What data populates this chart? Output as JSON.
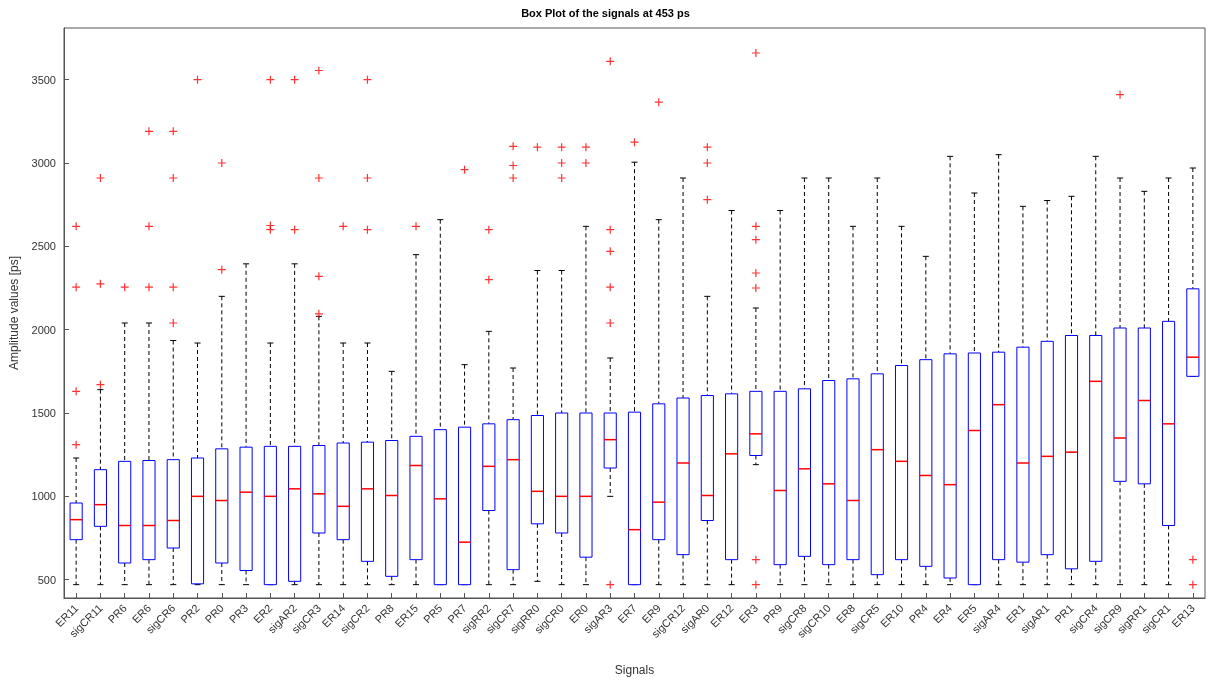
{
  "chart_data": {
    "type": "box",
    "title": "Box Plot of the signals at 453 ps",
    "xlabel": "Signals",
    "ylabel": "Amplitude values [ps]",
    "categories": [
      "ER11",
      "sigCR11",
      "PR6",
      "ER6",
      "sigCR6",
      "PR2",
      "PR0",
      "PR3",
      "ER2",
      "sigAR2",
      "sigCR3",
      "ER14",
      "sigCR2",
      "PR8",
      "ER15",
      "PR5",
      "PR7",
      "sigRR2",
      "sigCR7",
      "sigRR0",
      "sigCR0",
      "ER0",
      "sigAR3",
      "ER7",
      "ER9",
      "sigCR12",
      "sigAR0",
      "ER12",
      "ER3",
      "PR9",
      "sigCR8",
      "sigCR10",
      "ER8",
      "sigCR5",
      "ER10",
      "PR4",
      "ER4",
      "ER5",
      "sigAR4",
      "ER1",
      "sigAR1",
      "PR1",
      "sigCR4",
      "sigCR9",
      "sigRR1",
      "sigCR1",
      "ER13"
    ],
    "ylim": [
      390,
      3810
    ],
    "yticks": [
      500,
      1000,
      1500,
      2000,
      2500,
      3000,
      3500
    ],
    "grid": false,
    "marker": "cross",
    "series": [
      {
        "color": "#0000ff",
        "boxes": [
          {
            "low": 470,
            "q1": 740,
            "median": 860,
            "q3": 960,
            "high": 1230,
            "outliers": [
              1310,
              1630,
              2255,
              2620
            ]
          },
          {
            "low": 470,
            "q1": 820,
            "median": 950,
            "q3": 1160,
            "high": 1640,
            "outliers": [
              1670,
              2275,
              2910
            ]
          },
          {
            "low": 470,
            "q1": 600,
            "median": 825,
            "q3": 1210,
            "high": 2040,
            "outliers": [
              2255
            ]
          },
          {
            "low": 470,
            "q1": 620,
            "median": 825,
            "q3": 1215,
            "high": 2040,
            "outliers": [
              2255,
              2620,
              3190
            ]
          },
          {
            "low": 470,
            "q1": 690,
            "median": 855,
            "q3": 1220,
            "high": 1935,
            "outliers": [
              2040,
              2255,
              2910,
              3190
            ]
          },
          {
            "low": 470,
            "q1": 475,
            "median": 1000,
            "q3": 1230,
            "high": 1920,
            "outliers": [
              3500
            ]
          },
          {
            "low": 470,
            "q1": 600,
            "median": 975,
            "q3": 1285,
            "high": 2200,
            "outliers": [
              2360,
              3000
            ]
          },
          {
            "low": 470,
            "q1": 555,
            "median": 1025,
            "q3": 1295,
            "high": 2395
          },
          {
            "low": 470,
            "q1": 470,
            "median": 1000,
            "q3": 1300,
            "high": 1920,
            "outliers": [
              2600,
              2625,
              3500
            ]
          },
          {
            "low": 470,
            "q1": 490,
            "median": 1045,
            "q3": 1300,
            "high": 2395,
            "outliers": [
              2600,
              3500
            ]
          },
          {
            "low": 470,
            "q1": 780,
            "median": 1015,
            "q3": 1305,
            "high": 2080,
            "outliers": [
              2095,
              2320,
              2910,
              3555
            ]
          },
          {
            "low": 470,
            "q1": 740,
            "median": 940,
            "q3": 1320,
            "high": 1920,
            "outliers": [
              2620
            ]
          },
          {
            "low": 470,
            "q1": 610,
            "median": 1045,
            "q3": 1325,
            "high": 1920,
            "outliers": [
              2600,
              2910,
              3500
            ]
          },
          {
            "low": 470,
            "q1": 520,
            "median": 1005,
            "q3": 1335,
            "high": 1750
          },
          {
            "low": 470,
            "q1": 620,
            "median": 1185,
            "q3": 1360,
            "high": 2450,
            "outliers": [
              2620
            ]
          },
          {
            "low": 470,
            "q1": 470,
            "median": 985,
            "q3": 1400,
            "high": 2660
          },
          {
            "low": 470,
            "q1": 470,
            "median": 725,
            "q3": 1415,
            "high": 1790,
            "outliers": [
              2960
            ]
          },
          {
            "low": 470,
            "q1": 915,
            "median": 1180,
            "q3": 1435,
            "high": 1990,
            "outliers": [
              2300,
              2600
            ]
          },
          {
            "low": 470,
            "q1": 560,
            "median": 1220,
            "q3": 1460,
            "high": 1770,
            "outliers": [
              2910,
              2985,
              3100
            ]
          },
          {
            "low": 490,
            "q1": 835,
            "median": 1030,
            "q3": 1485,
            "high": 2355,
            "outliers": [
              3095
            ]
          },
          {
            "low": 470,
            "q1": 780,
            "median": 1000,
            "q3": 1500,
            "high": 2355,
            "outliers": [
              2910,
              3000,
              3095
            ]
          },
          {
            "low": 470,
            "q1": 635,
            "median": 1000,
            "q3": 1500,
            "high": 2620,
            "outliers": [
              3000,
              3095
            ]
          },
          {
            "low": 1000,
            "q1": 1170,
            "median": 1340,
            "q3": 1500,
            "high": 1830,
            "outliers": [
              470,
              2040,
              2255,
              2470,
              2600,
              3610
            ]
          },
          {
            "low": 470,
            "q1": 470,
            "median": 800,
            "q3": 1505,
            "high": 3005,
            "outliers": [
              3125
            ]
          },
          {
            "low": 470,
            "q1": 740,
            "median": 965,
            "q3": 1555,
            "high": 2660,
            "outliers": [
              3365
            ]
          },
          {
            "low": 470,
            "q1": 650,
            "median": 1200,
            "q3": 1590,
            "high": 2910
          },
          {
            "low": 470,
            "q1": 855,
            "median": 1005,
            "q3": 1605,
            "high": 2200,
            "outliers": [
              2780,
              3000,
              3095
            ]
          },
          {
            "low": 470,
            "q1": 620,
            "median": 1255,
            "q3": 1615,
            "high": 2715
          },
          {
            "low": 1190,
            "q1": 1245,
            "median": 1375,
            "q3": 1630,
            "high": 2130,
            "outliers": [
              470,
              620,
              2250,
              2340,
              2540,
              2620,
              3660
            ]
          },
          {
            "low": 470,
            "q1": 590,
            "median": 1035,
            "q3": 1630,
            "high": 2715
          },
          {
            "low": 470,
            "q1": 640,
            "median": 1165,
            "q3": 1645,
            "high": 2910
          },
          {
            "low": 470,
            "q1": 590,
            "median": 1075,
            "q3": 1695,
            "high": 2910
          },
          {
            "low": 470,
            "q1": 620,
            "median": 975,
            "q3": 1705,
            "high": 2620
          },
          {
            "low": 470,
            "q1": 530,
            "median": 1280,
            "q3": 1735,
            "high": 2910
          },
          {
            "low": 470,
            "q1": 620,
            "median": 1210,
            "q3": 1785,
            "high": 2620
          },
          {
            "low": 470,
            "q1": 580,
            "median": 1125,
            "q3": 1820,
            "high": 2440
          },
          {
            "low": 470,
            "q1": 510,
            "median": 1070,
            "q3": 1855,
            "high": 3040
          },
          {
            "low": 470,
            "q1": 470,
            "median": 1395,
            "q3": 1860,
            "high": 2820
          },
          {
            "low": 470,
            "q1": 620,
            "median": 1550,
            "q3": 1865,
            "high": 3050
          },
          {
            "low": 470,
            "q1": 605,
            "median": 1200,
            "q3": 1895,
            "high": 2740
          },
          {
            "low": 470,
            "q1": 650,
            "median": 1240,
            "q3": 1930,
            "high": 2775
          },
          {
            "low": 470,
            "q1": 565,
            "median": 1265,
            "q3": 1965,
            "high": 2800
          },
          {
            "low": 470,
            "q1": 610,
            "median": 1690,
            "q3": 1965,
            "high": 3040
          },
          {
            "low": 470,
            "q1": 1090,
            "median": 1350,
            "q3": 2010,
            "high": 2910,
            "outliers": [
              3410
            ]
          },
          {
            "low": 470,
            "q1": 1075,
            "median": 1575,
            "q3": 2010,
            "high": 2830
          },
          {
            "low": 470,
            "q1": 825,
            "median": 1435,
            "q3": 2050,
            "high": 2910
          },
          {
            "low": 1720,
            "q1": 1720,
            "median": 1835,
            "q3": 2245,
            "high": 2970,
            "outliers": [
              470,
              620
            ]
          }
        ]
      }
    ]
  }
}
